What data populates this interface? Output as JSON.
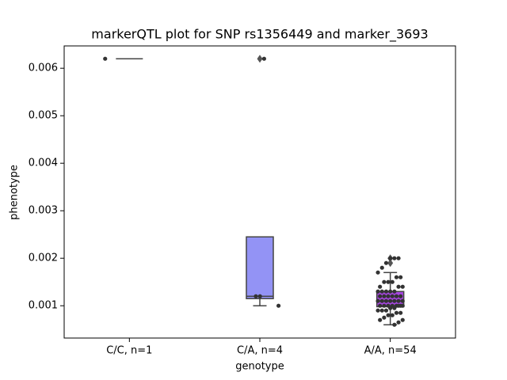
{
  "chart_data": {
    "type": "box",
    "title": "markerQTL plot for SNP rs1356449 and marker_3693",
    "xlabel": "genotype",
    "ylabel": "phenotype",
    "categories": [
      "C/C, n=1",
      "C/A, n=4",
      "A/A, n=54"
    ],
    "boxes": [
      {
        "q1": 0.0062,
        "median": 0.0062,
        "q3": 0.0062,
        "whislo": 0.0062,
        "whishi": 0.0062,
        "fliers": []
      },
      {
        "q1": 0.00115,
        "median": 0.0012,
        "q3": 0.00245,
        "whislo": 0.001,
        "whishi": 0.00245,
        "fliers": [
          0.0062
        ],
        "color": "#9393f5"
      },
      {
        "q1": 0.00098,
        "median": 0.0011,
        "q3": 0.0013,
        "whislo": 0.0006,
        "whishi": 0.0017,
        "fliers": [
          0.002,
          0.0019
        ],
        "color": "#a846e3"
      }
    ],
    "points": [
      [
        0.0062
      ],
      [
        0.0062,
        0.0012,
        0.0012,
        0.001
      ],
      [
        0.002,
        0.002,
        0.002,
        0.0019,
        0.0018,
        0.0017,
        0.0016,
        0.0016,
        0.0015,
        0.0015,
        0.0015,
        0.0014,
        0.0014,
        0.0014,
        0.0013,
        0.0013,
        0.0013,
        0.0013,
        0.0013,
        0.0012,
        0.0012,
        0.0012,
        0.0012,
        0.0012,
        0.0012,
        0.0011,
        0.0011,
        0.0011,
        0.0011,
        0.0011,
        0.0011,
        0.0011,
        0.001,
        0.001,
        0.001,
        0.001,
        0.001,
        0.001,
        0.001,
        0.001,
        0.00095,
        0.00095,
        0.0009,
        0.0009,
        0.0009,
        0.00085,
        0.00085,
        0.0008,
        0.0008,
        0.00075,
        0.0007,
        0.0007,
        0.00065,
        0.0006
      ]
    ],
    "point_color": "#333333",
    "ylim": [
      0.00032,
      0.00647
    ],
    "yticks": [
      0.001,
      0.002,
      0.003,
      0.004,
      0.005,
      0.006
    ]
  }
}
